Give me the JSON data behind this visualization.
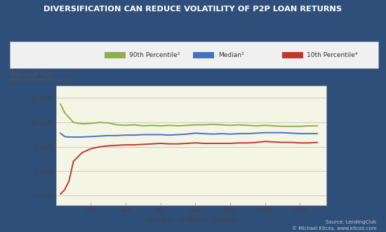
{
  "title": "DIVERSIFICATION CAN REDUCE VOLATILITY OF P2P LOAN RETURNS",
  "ylabel_line1": "Adjusted Net",
  "ylabel_line2": "Annualized Returns¹",
  "xlabel": "Number of Notes Owned",
  "source_text": "Source: LendingClub\n© Michael Kitces, www.kitces.com",
  "bg_outer": "#2e4f7a",
  "bg_plot": "#f5f5e6",
  "grid_color": "#bbbbbb",
  "ylim": [
    -0.07,
    0.175
  ],
  "yticks": [
    -0.05,
    0.0,
    0.05,
    0.1,
    0.15
  ],
  "ytick_labels": [
    "-5.00%",
    "0.00%",
    "5.00%",
    "10.00%",
    "15.00%"
  ],
  "xlim": [
    0,
    1550
  ],
  "xticks": [
    200,
    400,
    600,
    800,
    1000,
    1200,
    1400
  ],
  "legend_items": [
    {
      "label": "90th Percentile²",
      "color": "#8db048"
    },
    {
      "label": "Median³",
      "color": "#4472c4"
    },
    {
      "label": "10th Percentile⁴",
      "color": "#c0392b"
    }
  ],
  "green_x": [
    25,
    50,
    75,
    100,
    150,
    200,
    250,
    300,
    350,
    400,
    450,
    500,
    550,
    600,
    650,
    700,
    750,
    800,
    850,
    900,
    950,
    1000,
    1050,
    1100,
    1150,
    1200,
    1250,
    1300,
    1350,
    1400,
    1450,
    1500
  ],
  "green_y": [
    0.138,
    0.12,
    0.11,
    0.1,
    0.097,
    0.098,
    0.1,
    0.099,
    0.095,
    0.094,
    0.095,
    0.093,
    0.094,
    0.093,
    0.094,
    0.093,
    0.094,
    0.095,
    0.095,
    0.096,
    0.095,
    0.094,
    0.095,
    0.094,
    0.093,
    0.094,
    0.093,
    0.092,
    0.092,
    0.092,
    0.093,
    0.093
  ],
  "blue_x": [
    25,
    50,
    75,
    100,
    150,
    200,
    250,
    300,
    350,
    400,
    450,
    500,
    550,
    600,
    650,
    700,
    750,
    800,
    850,
    900,
    950,
    1000,
    1050,
    1100,
    1150,
    1200,
    1250,
    1300,
    1350,
    1400,
    1450,
    1500
  ],
  "blue_y": [
    0.078,
    0.071,
    0.07,
    0.07,
    0.07,
    0.071,
    0.072,
    0.073,
    0.073,
    0.074,
    0.074,
    0.075,
    0.075,
    0.075,
    0.074,
    0.075,
    0.076,
    0.078,
    0.077,
    0.076,
    0.077,
    0.076,
    0.077,
    0.077,
    0.078,
    0.079,
    0.079,
    0.079,
    0.078,
    0.077,
    0.077,
    0.077
  ],
  "red_x": [
    25,
    50,
    75,
    100,
    150,
    200,
    250,
    300,
    350,
    400,
    450,
    500,
    550,
    600,
    650,
    700,
    750,
    800,
    850,
    900,
    950,
    1000,
    1050,
    1100,
    1150,
    1200,
    1250,
    1300,
    1350,
    1400,
    1450,
    1500
  ],
  "red_y": [
    -0.047,
    -0.038,
    -0.02,
    0.02,
    0.038,
    0.046,
    0.05,
    0.052,
    0.053,
    0.054,
    0.054,
    0.055,
    0.056,
    0.057,
    0.056,
    0.056,
    0.057,
    0.058,
    0.057,
    0.057,
    0.057,
    0.057,
    0.058,
    0.058,
    0.059,
    0.061,
    0.06,
    0.059,
    0.059,
    0.058,
    0.058,
    0.059
  ]
}
